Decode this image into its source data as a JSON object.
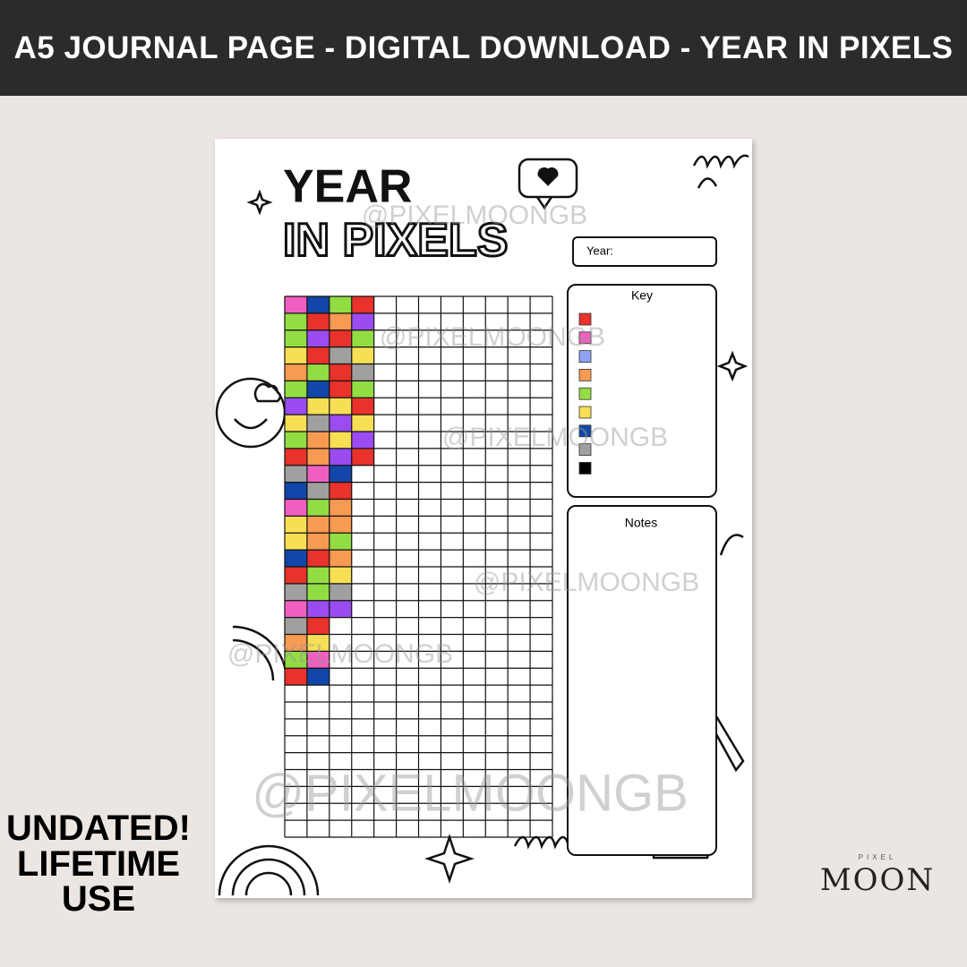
{
  "banner": {
    "title": "A5 JOURNAL PAGE - DIGITAL DOWNLOAD - YEAR IN PIXELS"
  },
  "page": {
    "title_line1": "YEAR",
    "title_line2": "IN PIXELS",
    "year_label": "Year:",
    "key_title": "Key",
    "notes_title": "Notes",
    "key_colors": [
      "#e8322b",
      "#f05fc0",
      "#8fa1f2",
      "#f79a52",
      "#93dd44",
      "#f7df55",
      "#1246a8",
      "#a0a0a0",
      "#000000"
    ],
    "filled_columns": [
      [
        "#f05fc0",
        "#93dd44",
        "#93dd44",
        "#f7df55",
        "#f79a52",
        "#93dd44",
        "#9a4cf0",
        "#f7df55",
        "#93dd44",
        "#e8322b",
        "#a0a0a0",
        "#1246a8",
        "#f05fc0",
        "#f7df55",
        "#f7df55",
        "#1246a8",
        "#e8322b",
        "#a0a0a0",
        "#f05fc0",
        "#a0a0a0",
        "#f79a52",
        "#93dd44",
        "#e8322b"
      ],
      [
        "#1246a8",
        "#e8322b",
        "#9a4cf0",
        "#e8322b",
        "#93dd44",
        "#1246a8",
        "#f7df55",
        "#a0a0a0",
        "#f79a52",
        "#f79a52",
        "#f05fc0",
        "#a0a0a0",
        "#93dd44",
        "#f79a52",
        "#f79a52",
        "#e8322b",
        "#93dd44",
        "#93dd44",
        "#9a4cf0",
        "#e8322b",
        "#f7df55",
        "#f05fc0",
        "#1246a8"
      ],
      [
        "#93dd44",
        "#f79a52",
        "#e8322b",
        "#a0a0a0",
        "#e8322b",
        "#e8322b",
        "#f7df55",
        "#9a4cf0",
        "#f7df55",
        "#9a4cf0",
        "#1246a8",
        "#e8322b",
        "#f79a52",
        "#f79a52",
        "#93dd44",
        "#f79a52",
        "#f7df55",
        "#a0a0a0",
        "#9a4cf0"
      ],
      [
        "#e8322b",
        "#9a4cf0",
        "#93dd44",
        "#f7df55",
        "#a0a0a0",
        "#93dd44",
        "#e8322b",
        "#f7df55",
        "#9a4cf0",
        "#e8322b"
      ]
    ]
  },
  "watermarks": [
    "@PIXELMOONGB",
    "@PIXELMOONGB",
    "@PIXELMOONGB",
    "@PIXELMOONGB",
    "@PIXELMOONGB",
    "@PIXELMOONGB"
  ],
  "promo": {
    "line1": "UNDATED!",
    "line2": "LIFETIME",
    "line3": "USE"
  },
  "logo": {
    "small": "PIXEL",
    "large": "MOON"
  }
}
